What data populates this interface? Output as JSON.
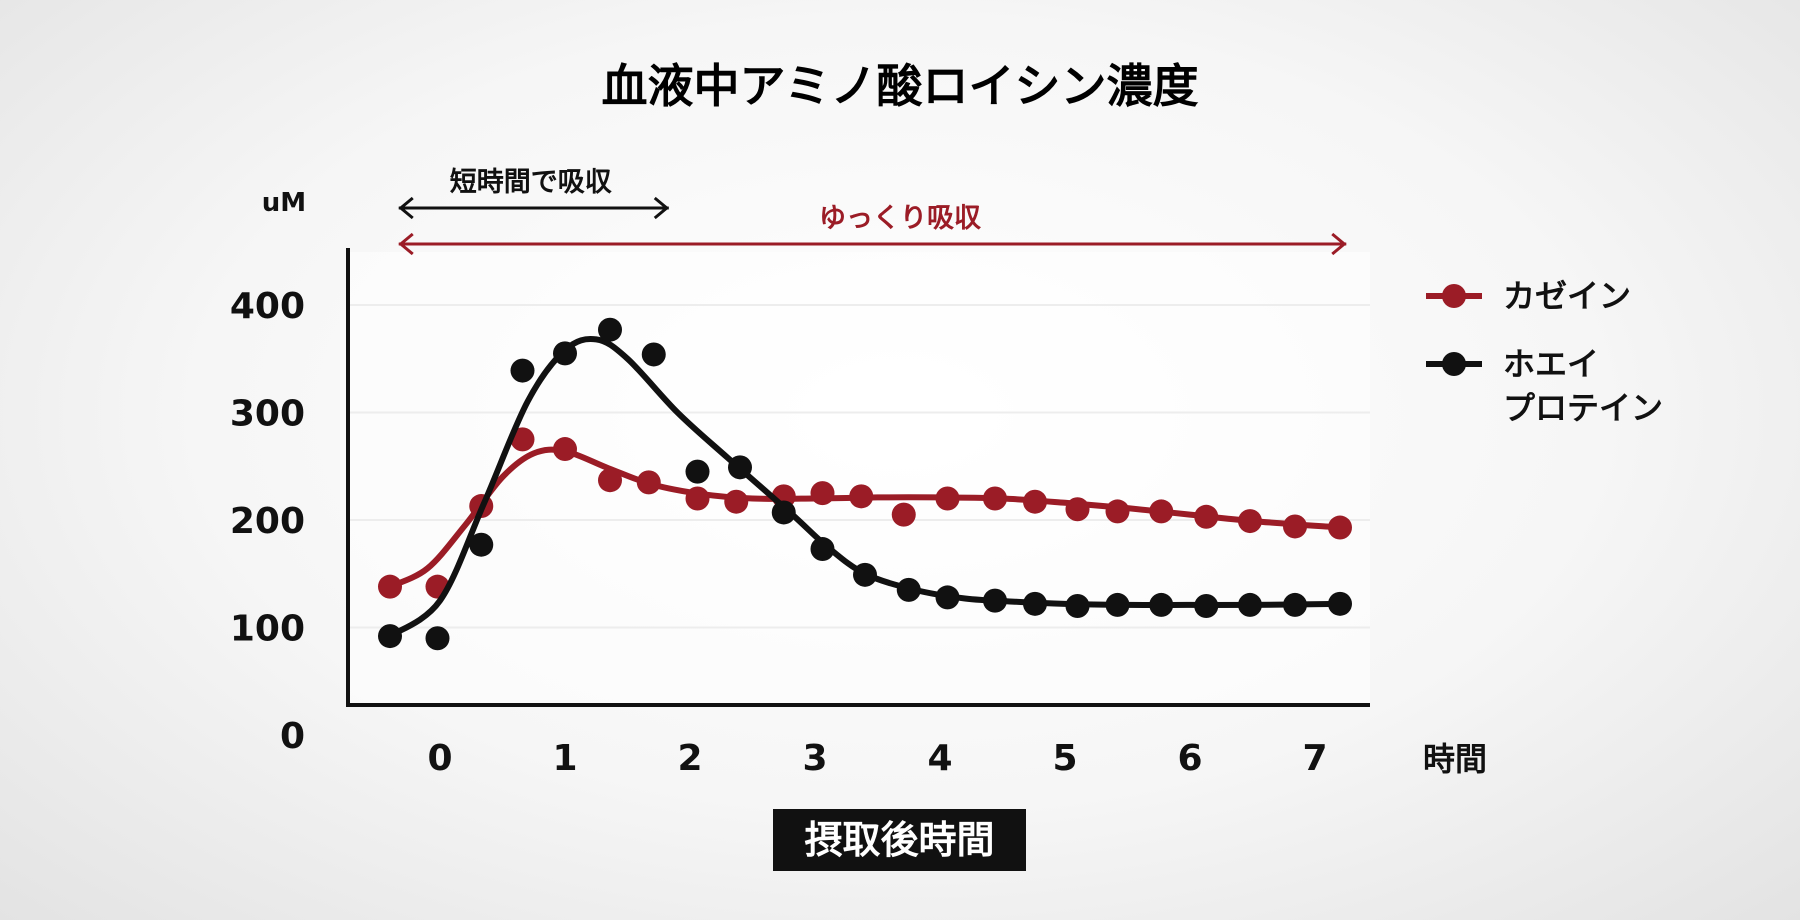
{
  "chart_data": {
    "type": "line",
    "title": "血液中アミノ酸ロイシン濃度",
    "ylabel": "uM",
    "xlabel": "摂取後時間",
    "x_unit": "時間",
    "ylim": [
      0,
      400
    ],
    "yticks": [
      "0",
      "100",
      "200",
      "300",
      "400"
    ],
    "xticks": [
      "0",
      "1",
      "2",
      "3",
      "4",
      "5",
      "6",
      "7"
    ],
    "grid": true,
    "legend_position": "right",
    "annotations": [
      {
        "text": "短時間で吸収",
        "color": "#111111",
        "x_from": -0.33,
        "x_to": 1.83
      },
      {
        "text": "ゆっくり吸収",
        "color": "#9b1c26",
        "x_from": -0.33,
        "x_to": 7.25
      }
    ],
    "series": [
      {
        "name": "カゼイン",
        "color": "#9b1c26",
        "points": [
          [
            -0.4,
            138
          ],
          [
            -0.02,
            138
          ],
          [
            0.33,
            213
          ],
          [
            0.66,
            275
          ],
          [
            1.0,
            266
          ],
          [
            1.36,
            237
          ],
          [
            1.67,
            235
          ],
          [
            2.06,
            220
          ],
          [
            2.37,
            217
          ],
          [
            2.75,
            222
          ],
          [
            3.06,
            225
          ],
          [
            3.37,
            222
          ],
          [
            3.71,
            205
          ],
          [
            4.06,
            220
          ],
          [
            4.44,
            220
          ],
          [
            4.76,
            217
          ],
          [
            5.1,
            210
          ],
          [
            5.42,
            208
          ],
          [
            5.77,
            208
          ],
          [
            6.13,
            203
          ],
          [
            6.48,
            199
          ],
          [
            6.84,
            194
          ],
          [
            7.2,
            193
          ]
        ],
        "curve": [
          [
            -0.4,
            138
          ],
          [
            -0.1,
            155
          ],
          [
            0.2,
            195
          ],
          [
            0.5,
            240
          ],
          [
            0.75,
            262
          ],
          [
            1.0,
            264
          ],
          [
            1.35,
            248
          ],
          [
            1.7,
            233
          ],
          [
            2.1,
            224
          ],
          [
            2.5,
            220
          ],
          [
            3.0,
            220
          ],
          [
            3.5,
            221
          ],
          [
            4.0,
            221
          ],
          [
            4.5,
            220
          ],
          [
            5.0,
            216
          ],
          [
            5.5,
            211
          ],
          [
            6.0,
            205
          ],
          [
            6.5,
            199
          ],
          [
            7.2,
            193
          ]
        ]
      },
      {
        "name": "ホエイプロテイン",
        "color": "#111111",
        "points": [
          [
            -0.4,
            92
          ],
          [
            -0.02,
            90
          ],
          [
            0.33,
            177
          ],
          [
            0.66,
            339
          ],
          [
            1.0,
            355
          ],
          [
            1.36,
            377
          ],
          [
            1.71,
            354
          ],
          [
            2.06,
            245
          ],
          [
            2.4,
            249
          ],
          [
            2.75,
            207
          ],
          [
            3.06,
            173
          ],
          [
            3.4,
            149
          ],
          [
            3.75,
            135
          ],
          [
            4.06,
            128
          ],
          [
            4.44,
            125
          ],
          [
            4.76,
            122
          ],
          [
            5.1,
            120
          ],
          [
            5.42,
            121
          ],
          [
            5.77,
            121
          ],
          [
            6.13,
            120
          ],
          [
            6.48,
            121
          ],
          [
            6.84,
            121
          ],
          [
            7.2,
            122
          ]
        ],
        "curve": [
          [
            -0.4,
            92
          ],
          [
            0.0,
            125
          ],
          [
            0.35,
            215
          ],
          [
            0.7,
            310
          ],
          [
            1.0,
            358
          ],
          [
            1.25,
            368
          ],
          [
            1.5,
            350
          ],
          [
            1.9,
            300
          ],
          [
            2.3,
            258
          ],
          [
            2.8,
            207
          ],
          [
            3.1,
            175
          ],
          [
            3.4,
            150
          ],
          [
            3.8,
            135
          ],
          [
            4.2,
            127
          ],
          [
            4.6,
            124
          ],
          [
            5.0,
            122
          ],
          [
            5.5,
            121
          ],
          [
            6.0,
            121
          ],
          [
            6.5,
            121
          ],
          [
            7.2,
            122
          ]
        ]
      }
    ]
  }
}
